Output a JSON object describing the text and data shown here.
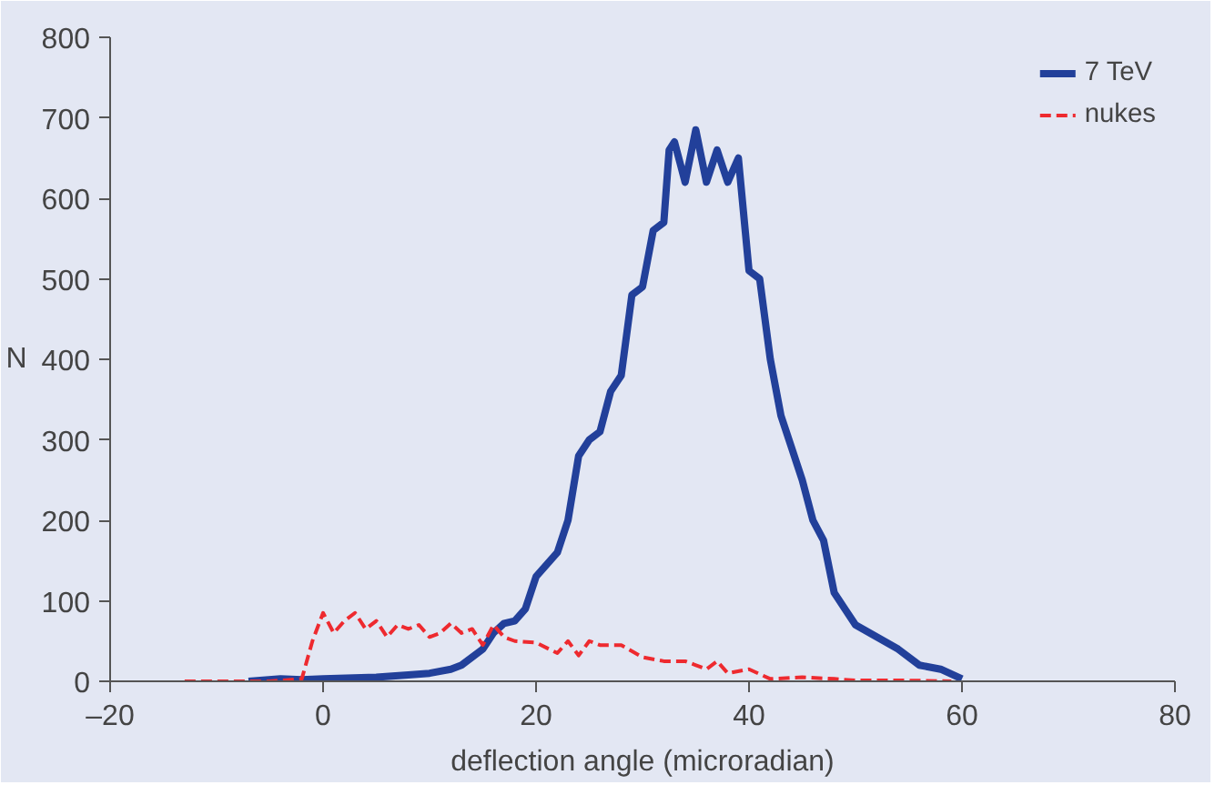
{
  "chart_data": {
    "type": "line",
    "xlabel": "deflection angle (microradian)",
    "ylabel": "N",
    "xlim": [
      -20,
      80
    ],
    "ylim": [
      0,
      800
    ],
    "xticks": [
      {
        "value": -20,
        "label": "–20"
      },
      0,
      20,
      40,
      60,
      80
    ],
    "yticks": [
      0,
      100,
      200,
      300,
      400,
      500,
      600,
      700,
      800
    ],
    "grid": false,
    "legend": "top right",
    "marker": "none",
    "series": [
      {
        "name": "7 TeV",
        "color": "#22409a",
        "line_style": "solid",
        "x": [
          -7,
          -4,
          -2,
          0,
          5,
          8,
          10,
          12,
          13,
          15,
          16,
          17,
          18,
          19,
          20,
          22,
          23,
          24,
          25,
          26,
          27,
          28,
          29,
          30,
          31,
          32,
          32.5,
          33,
          34,
          35,
          36,
          37,
          38,
          39,
          40,
          41,
          42,
          43,
          44,
          45,
          46,
          47,
          48,
          49,
          50,
          52,
          54,
          56,
          58,
          60
        ],
        "values": [
          0,
          3,
          2,
          3,
          5,
          8,
          10,
          15,
          20,
          40,
          60,
          72,
          75,
          90,
          130,
          160,
          200,
          280,
          300,
          310,
          360,
          380,
          480,
          490,
          560,
          570,
          660,
          670,
          620,
          685,
          620,
          660,
          620,
          650,
          510,
          500,
          400,
          330,
          290,
          250,
          200,
          175,
          110,
          90,
          70,
          55,
          40,
          20,
          15,
          3
        ]
      },
      {
        "name": "nukes",
        "color": "#ee2a2f",
        "line_style": "dashed",
        "x": [
          -13,
          -5,
          -2,
          -1,
          0,
          1,
          2,
          3,
          4,
          5,
          6,
          7,
          8,
          9,
          10,
          11,
          12,
          13,
          14,
          15,
          16,
          17,
          18,
          20,
          22,
          23,
          24,
          25,
          26,
          28,
          30,
          32,
          34,
          36,
          37,
          38,
          40,
          42,
          45,
          48,
          50,
          55,
          59
        ],
        "values": [
          0,
          0,
          3,
          50,
          85,
          60,
          75,
          85,
          65,
          75,
          55,
          70,
          65,
          70,
          55,
          60,
          72,
          60,
          65,
          45,
          70,
          55,
          50,
          48,
          35,
          50,
          32,
          50,
          45,
          45,
          30,
          25,
          25,
          15,
          25,
          10,
          15,
          3,
          5,
          3,
          1,
          1,
          0
        ]
      }
    ]
  }
}
